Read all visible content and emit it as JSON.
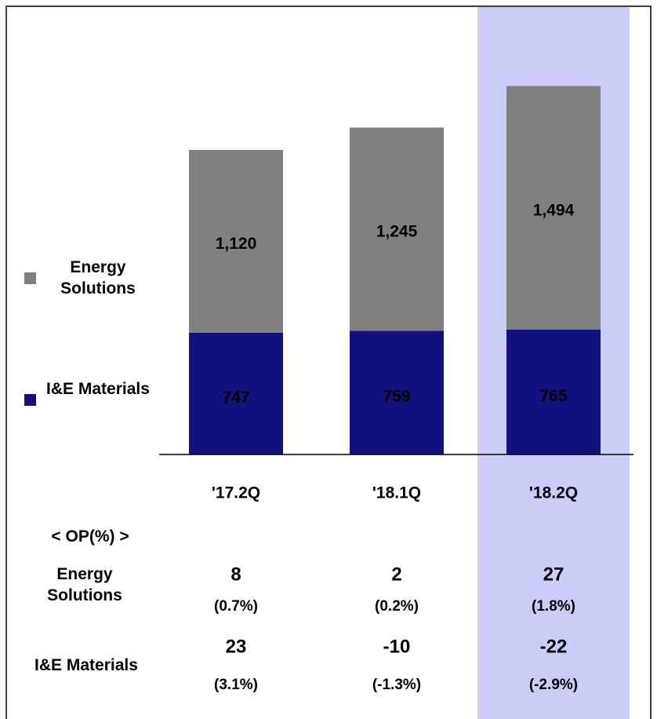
{
  "chart_data": {
    "type": "stacked-bar",
    "categories": [
      "'17.2Q",
      "'18.1Q",
      "'18.2Q"
    ],
    "series": [
      {
        "name": "I&E Materials",
        "color": "#12127f",
        "values": [
          747,
          759,
          765
        ],
        "value_labels": [
          "747",
          "759",
          "765"
        ]
      },
      {
        "name": "Energy Solutions",
        "color": "#808080",
        "values": [
          1120,
          1245,
          1494
        ],
        "value_labels": [
          "1,120",
          "1,245",
          "1,494"
        ]
      }
    ],
    "highlight_color": "#ccccf8"
  },
  "op_table": {
    "title": "< OP(%) >",
    "rows": [
      {
        "name": "Energy Solutions",
        "values": [
          8,
          2,
          27
        ],
        "percents": [
          "(0.7%)",
          "(0.2%)",
          "(1.8%)"
        ]
      },
      {
        "name": "I&E Materials",
        "values": [
          23,
          -10,
          -22
        ],
        "percents": [
          "(3.1%)",
          "(-1.3%)",
          "(-2.9%)"
        ]
      }
    ]
  }
}
